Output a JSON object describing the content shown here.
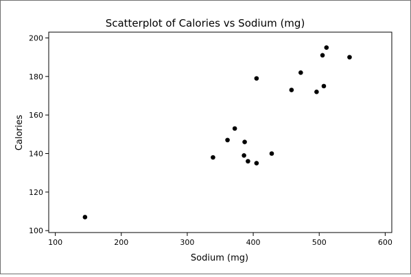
{
  "chart_data": {
    "type": "scatter",
    "title": "Scatterplot of Calories vs Sodium (mg)",
    "xlabel": "Sodium (mg)",
    "ylabel": "Calories",
    "xlim": [
      90,
      610
    ],
    "ylim": [
      99,
      203
    ],
    "xticks": [
      100,
      200,
      300,
      400,
      500,
      600
    ],
    "yticks": [
      100,
      120,
      140,
      160,
      180,
      200
    ],
    "grid": false,
    "points": [
      {
        "x": 145,
        "y": 107
      },
      {
        "x": 339,
        "y": 138
      },
      {
        "x": 361,
        "y": 147
      },
      {
        "x": 372,
        "y": 153
      },
      {
        "x": 386,
        "y": 139
      },
      {
        "x": 387,
        "y": 146
      },
      {
        "x": 392,
        "y": 136
      },
      {
        "x": 405,
        "y": 135
      },
      {
        "x": 405,
        "y": 179
      },
      {
        "x": 428,
        "y": 140
      },
      {
        "x": 458,
        "y": 173
      },
      {
        "x": 472,
        "y": 182
      },
      {
        "x": 496,
        "y": 172
      },
      {
        "x": 505,
        "y": 191
      },
      {
        "x": 507,
        "y": 175
      },
      {
        "x": 511,
        "y": 195
      },
      {
        "x": 546,
        "y": 190
      }
    ]
  }
}
